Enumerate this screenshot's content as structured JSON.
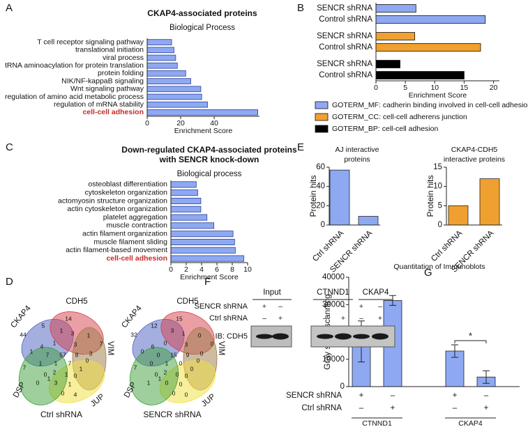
{
  "panels": [
    "A",
    "B",
    "C",
    "D",
    "E",
    "F",
    "G"
  ],
  "blot": {
    "columns": [
      "Input",
      "CTNND1",
      "CKAP4"
    ],
    "rows": [
      {
        "name": "SENCR shRNA",
        "signs": [
          "+",
          "–",
          "+",
          "–",
          "+",
          "–"
        ]
      },
      {
        "name": "Ctrl shRNA",
        "signs": [
          "–",
          "+",
          "–",
          "+",
          "–",
          "+"
        ]
      }
    ],
    "label": "IB: CDH5"
  },
  "chart_data": [
    {
      "type": "hbar",
      "title": [
        "CKAP4-associated proteins"
      ],
      "subtitle": "Biological Process",
      "categories": [
        "T cell receptor signaling pathway",
        "translational initiation",
        "viral process",
        "tRNA aminoacylation for protein translation",
        "protein folding",
        "NIK/NF-kappaB signaling",
        "Wnt signaling pathway",
        "regulation of amino acid metabolic process",
        "regulation of mRNA stability",
        "cell-cell adhesion"
      ],
      "values": [
        14.6,
        16,
        17,
        18,
        23,
        26,
        32,
        32.5,
        36,
        66
      ],
      "color": "#8ea9f2",
      "xlim": [
        0,
        67
      ],
      "xticks": [
        0,
        20,
        40
      ],
      "xlabel": "Enrichment Score",
      "highlight_index": 9,
      "highlight_color": "#c62a2a"
    },
    {
      "type": "grouped_hbar",
      "categories": [
        "SENCR shRNA",
        "Control shRNA"
      ],
      "series": [
        {
          "name": "GOTERM_MF: cadherin binding involved in cell-cell adhesion",
          "color": "#8ea9f2",
          "values": [
            6.8,
            18.6
          ]
        },
        {
          "name": "GOTERM_CC: cell-cell adherens junction",
          "color": "#f0a030",
          "values": [
            6.6,
            17.8
          ]
        },
        {
          "name": "GOTERM_BP: cell-cell adhesion",
          "color": "#000000",
          "values": [
            4.1,
            15
          ]
        }
      ],
      "xlim": [
        0,
        21
      ],
      "xticks": [
        0,
        5,
        10,
        15,
        20
      ],
      "xlabel": "Enrichment Score",
      "legend": "bottom"
    },
    {
      "type": "hbar",
      "title": [
        "Down-regulated CKAP4-associated proteins",
        "with SENCR knock-down"
      ],
      "subtitle": "Biological process",
      "categories": [
        "osteoblast differentiation",
        "cytoskeleton organization",
        "actomyosin structure organization",
        "actin cytoskeleton organization",
        "platelet aggregation",
        "muscle contraction",
        "actin filament organization",
        "muscle filament sliding",
        "actin filament-based movement",
        "cell-cell adhesion"
      ],
      "values": [
        3.3,
        3.5,
        3.9,
        3.9,
        4.7,
        5.6,
        8.1,
        8.3,
        8.4,
        9.5
      ],
      "color": "#8ea9f2",
      "xlim": [
        0,
        10
      ],
      "xticks": [
        0,
        2,
        4,
        6,
        8,
        10
      ],
      "xlabel": "Enrichment Score",
      "highlight_index": 9,
      "highlight_color": "#c62a2a"
    },
    {
      "type": "venn",
      "sets": [
        "CKAP4",
        "CDH5",
        "VIM",
        "JUP",
        "DSP"
      ],
      "colors": [
        "#4a5fc1",
        "#d6404a",
        "#9b7a45",
        "#f2e03c",
        "#3f9f3a"
      ],
      "caption": "Ctrl shRNA",
      "regions": [
        44,
        14,
        7,
        5,
        1,
        3,
        1,
        1,
        4,
        1,
        3,
        3,
        7,
        57,
        8,
        0,
        1,
        1,
        7,
        1,
        0,
        2,
        1,
        0,
        7,
        0,
        3,
        1,
        0,
        4,
        1
      ]
    },
    {
      "type": "venn",
      "sets": [
        "CKAP4",
        "CDH5",
        "VIM",
        "JUP",
        "DSP"
      ],
      "colors": [
        "#4a5fc1",
        "#d6404a",
        "#9b7a45",
        "#f2e03c",
        "#3f9f3a"
      ],
      "caption": "SENCR shRNA",
      "regions": [
        32,
        15,
        0,
        12,
        3,
        1,
        0,
        0,
        6,
        0,
        3,
        0,
        0,
        15,
        9,
        0,
        0,
        1,
        0,
        0,
        0,
        2,
        0,
        0,
        7,
        1,
        0,
        0,
        0,
        0,
        1
      ]
    },
    {
      "type": "bar",
      "title": [
        "AJ interactive",
        "proteins"
      ],
      "ylabel": "Protein hits",
      "categories": [
        "Ctrl shRNA",
        "SENCR shRNA"
      ],
      "values": [
        57,
        9
      ],
      "color": "#8ea9f2",
      "ylim": [
        0,
        60
      ],
      "yticks": [
        0,
        20,
        40,
        60
      ]
    },
    {
      "type": "bar",
      "title": [
        "CKAP4-CDH5",
        "interactive proteins"
      ],
      "ylabel": "Protein hits",
      "categories": [
        "Ctrl shRNA",
        "SENCR shRNA"
      ],
      "values": [
        5,
        12
      ],
      "color": "#f0a030",
      "ylim": [
        0,
        15
      ],
      "yticks": [
        0,
        5,
        10,
        15
      ]
    },
    {
      "type": "error_bar",
      "title": [
        "Quantitation of Immunoblots"
      ],
      "ylabel": "Gray scale scanning",
      "values": [
        16500,
        31500,
        13000,
        3500
      ],
      "errors": [
        7500,
        1800,
        2300,
        2300
      ],
      "color": "#8ea9f2",
      "ylim": [
        0,
        40000
      ],
      "yticks": [
        0,
        10000,
        20000,
        30000,
        40000
      ],
      "conditions": [
        {
          "name": "SENCR shRNA",
          "signs": [
            "+",
            "–",
            "+",
            "–"
          ]
        },
        {
          "name": "Ctrl shRNA",
          "signs": [
            "–",
            "+",
            "–",
            "+"
          ]
        }
      ],
      "groups": [
        "CTNND1",
        "CKAP4"
      ],
      "significance": "*"
    }
  ]
}
